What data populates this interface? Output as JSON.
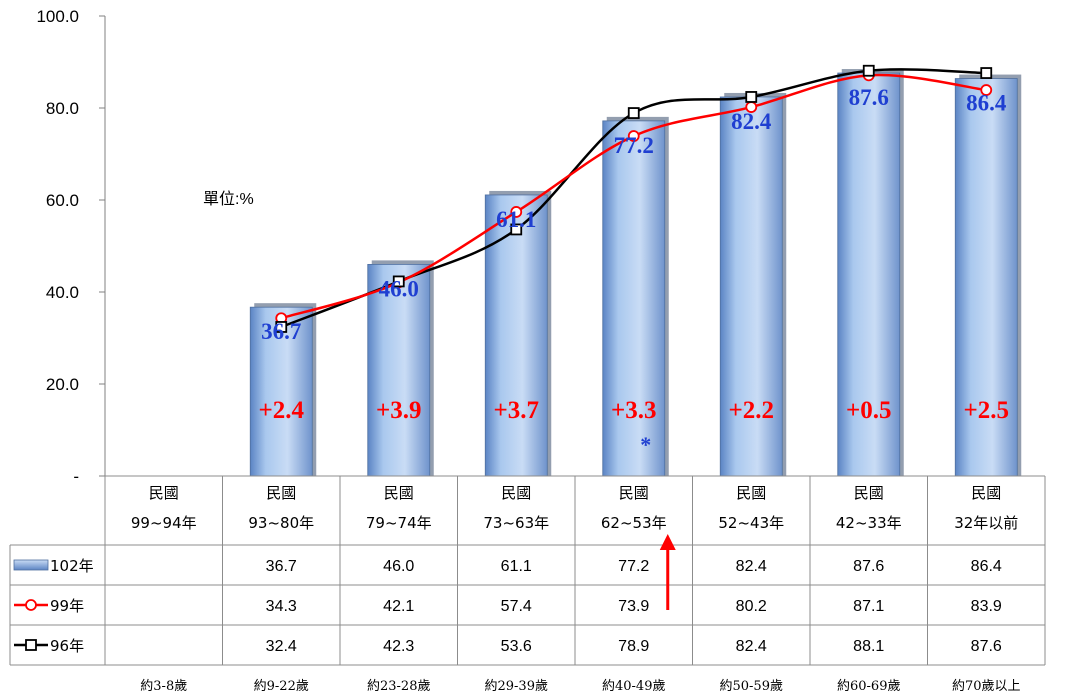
{
  "chart_data": {
    "type": "bar",
    "unit_label": "單位:%",
    "ylim": [
      0,
      100
    ],
    "y_ticks": [
      "-",
      "20.0",
      "40.0",
      "60.0",
      "80.0",
      "100.0"
    ],
    "categories": [
      {
        "line1": "民國",
        "line2": "99~94年",
        "age": "約3-8歲"
      },
      {
        "line1": "民國",
        "line2": "93~80年",
        "age": "約9-22歲"
      },
      {
        "line1": "民國",
        "line2": "79~74年",
        "age": "約23-28歲"
      },
      {
        "line1": "民國",
        "line2": "73~63年",
        "age": "約29-39歲"
      },
      {
        "line1": "民國",
        "line2": "62~53年",
        "age": "約40-49歲"
      },
      {
        "line1": "民國",
        "line2": "52~43年",
        "age": "約50-59歲"
      },
      {
        "line1": "民國",
        "line2": "42~33年",
        "age": "約60-69歲"
      },
      {
        "line1": "民國",
        "line2": "32年以前",
        "age": "約70歲以上"
      }
    ],
    "series": [
      {
        "name": "102年",
        "kind": "bar",
        "color": "#8db4e2",
        "values": [
          null,
          36.7,
          46.0,
          61.1,
          77.2,
          82.4,
          87.6,
          86.4
        ],
        "labels": [
          "",
          "36.7",
          "46.0",
          "61.1",
          "77.2",
          "82.4",
          "87.6",
          "86.4"
        ]
      },
      {
        "name": "99年",
        "kind": "line",
        "color": "#ff0000",
        "marker": "circle",
        "values": [
          null,
          34.3,
          42.1,
          57.4,
          73.9,
          80.2,
          87.1,
          83.9
        ],
        "labels": [
          "",
          "34.3",
          "42.1",
          "57.4",
          "73.9",
          "80.2",
          "87.1",
          "83.9"
        ]
      },
      {
        "name": "96年",
        "kind": "line",
        "color": "#000000",
        "marker": "square",
        "values": [
          null,
          32.4,
          42.3,
          53.6,
          78.9,
          82.4,
          88.1,
          87.6
        ],
        "labels": [
          "",
          "32.4",
          "42.3",
          "53.6",
          "78.9",
          "82.4",
          "88.1",
          "87.6"
        ]
      }
    ],
    "change_labels": [
      "",
      "+2.4",
      "+3.9",
      "+3.7",
      "+3.3",
      "+2.2",
      "+0.5",
      "+2.5"
    ],
    "asterisk": "*",
    "colors": {
      "bar_value_label": "#1f3fd1",
      "change_label": "#ff0000",
      "arrow": "#ff0000"
    }
  }
}
